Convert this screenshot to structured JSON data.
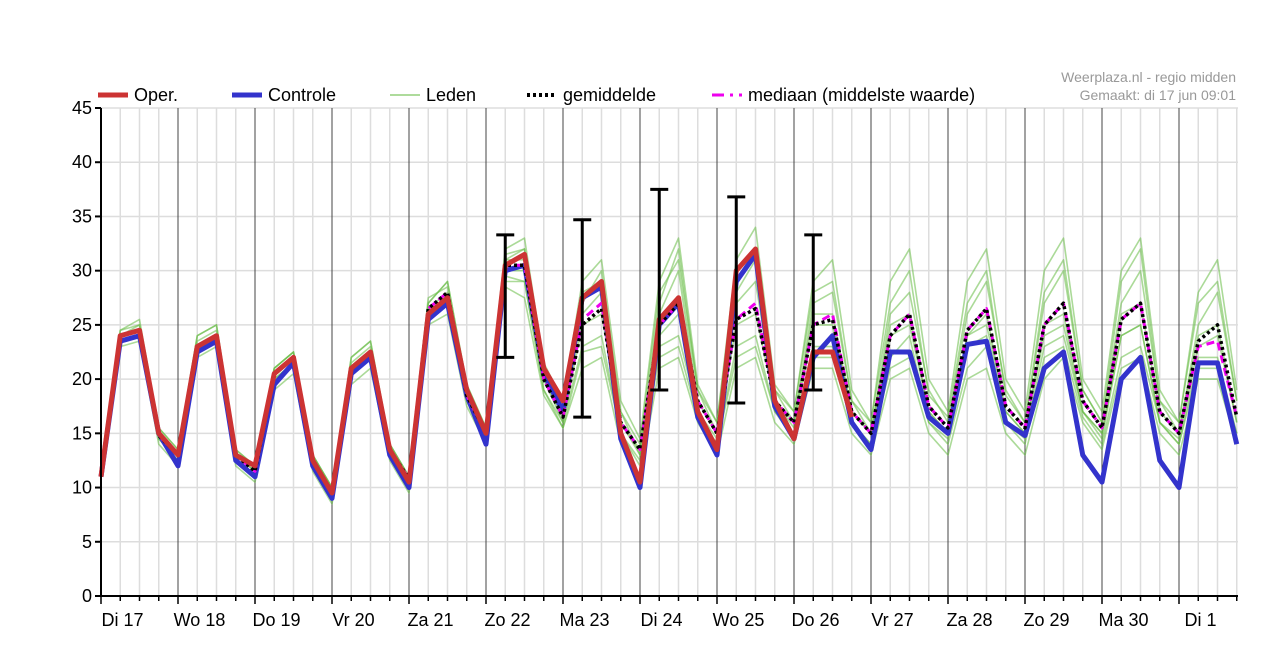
{
  "credit": {
    "line1": "Weerplaza.nl - regio midden",
    "line2": "Gemaakt: di 17 jun 09:01"
  },
  "legend": [
    {
      "key": "oper",
      "label": "Oper.",
      "color": "#cc3333",
      "style": "solid-thick"
    },
    {
      "key": "controle",
      "label": "Controle",
      "color": "#3333cc",
      "style": "solid-thick"
    },
    {
      "key": "leden",
      "label": "Leden",
      "color": "#66bb44",
      "style": "solid-thin"
    },
    {
      "key": "gemiddelde",
      "label": "gemiddelde",
      "color": "#000000",
      "style": "dotted"
    },
    {
      "key": "mediaan",
      "label": "mediaan (middelste waarde)",
      "color": "#ee00ee",
      "style": "dashed"
    }
  ],
  "chart_data": {
    "type": "line",
    "title": "",
    "xlabel": "",
    "ylabel": "",
    "ylim": [
      0,
      45
    ],
    "yticks": [
      0,
      5,
      10,
      15,
      20,
      25,
      30,
      35,
      40,
      45
    ],
    "grid": true,
    "legend_position": "top",
    "x_unit": "6-hour steps from Di 17 00:00",
    "day_labels": [
      "Di 17",
      "Wo 18",
      "Do 19",
      "Vr 20",
      "Za 21",
      "Zo 22",
      "Ma 23",
      "Di 24",
      "Wo 25",
      "Do 26",
      "Vr 27",
      "Za 28",
      "Zo 29",
      "Ma 30",
      "Di 1"
    ],
    "colors": {
      "oper": "#cc3333",
      "controle": "#3333cc",
      "leden": "#66bb44",
      "gemiddelde": "#000000",
      "mediaan": "#ee00ee",
      "spread": "#000000"
    },
    "series": [
      {
        "name": "Oper.",
        "key": "oper",
        "x": [
          0,
          1,
          2,
          3,
          4,
          5,
          6,
          7,
          8,
          9,
          10,
          11,
          12,
          13,
          14,
          15,
          16,
          17,
          18,
          19,
          20,
          21,
          22,
          23,
          24,
          25,
          26,
          27,
          28,
          29,
          30,
          31,
          32,
          33,
          34,
          35,
          36,
          37,
          38,
          39
        ],
        "y": [
          11,
          24,
          24.5,
          15,
          13,
          23,
          24,
          13,
          12,
          20.5,
          22,
          12.5,
          9.5,
          21,
          22.5,
          13.5,
          10.5,
          26,
          27.5,
          19,
          15,
          30.5,
          31.5,
          21,
          18,
          27.5,
          29,
          15,
          10.5,
          25.5,
          27.5,
          17,
          13.5,
          30,
          32,
          18,
          14.5,
          22.5,
          22.5,
          16.5
        ]
      },
      {
        "name": "Controle",
        "key": "controle",
        "x": [
          0,
          1,
          2,
          3,
          4,
          5,
          6,
          7,
          8,
          9,
          10,
          11,
          12,
          13,
          14,
          15,
          16,
          17,
          18,
          19,
          20,
          21,
          22,
          23,
          24,
          25,
          26,
          27,
          28,
          29,
          30,
          31,
          32,
          33,
          34,
          35,
          36,
          37,
          38,
          39,
          40,
          41,
          42,
          43,
          44,
          45,
          46,
          47,
          48,
          49,
          50,
          51,
          52,
          53,
          54,
          55,
          56,
          57,
          58,
          59
        ],
        "y": [
          11,
          23.5,
          24,
          15,
          12,
          22.5,
          23.5,
          12.5,
          11,
          19.5,
          21.5,
          12,
          9,
          20.5,
          22,
          13,
          10,
          25.5,
          27,
          18.5,
          14,
          30,
          30.5,
          20.5,
          17,
          27.5,
          28.5,
          14.5,
          10,
          25,
          27,
          16.5,
          13,
          29,
          31.5,
          17.5,
          14.5,
          22,
          24,
          16,
          13.5,
          22.5,
          22.5,
          16.5,
          15,
          23.2,
          23.5,
          16,
          14.8,
          21,
          22.5,
          13,
          10.5,
          20,
          22,
          12.5,
          10,
          21.5,
          21.5,
          14
        ]
      },
      {
        "name": "gemiddelde",
        "key": "gemiddelde",
        "x": [
          0,
          1,
          2,
          3,
          4,
          5,
          6,
          7,
          8,
          9,
          10,
          11,
          12,
          13,
          14,
          15,
          16,
          17,
          18,
          19,
          20,
          21,
          22,
          23,
          24,
          25,
          26,
          27,
          28,
          29,
          30,
          31,
          32,
          33,
          34,
          35,
          36,
          37,
          38,
          39,
          40,
          41,
          42,
          43,
          44,
          45,
          46,
          47,
          48,
          49,
          50,
          51,
          52,
          53,
          54,
          55,
          56,
          57,
          58,
          59
        ],
        "y": [
          11,
          24,
          24.5,
          14.8,
          13,
          23,
          24,
          13,
          11.5,
          20.5,
          22,
          12.5,
          9.5,
          21,
          22.5,
          13.5,
          10.8,
          26.5,
          28,
          18.5,
          15,
          30.5,
          30.5,
          20,
          16.5,
          25,
          26.5,
          16,
          13.5,
          25,
          27,
          18,
          15,
          25.5,
          26.5,
          18,
          16,
          25,
          25.5,
          17,
          15,
          24,
          26,
          17.5,
          15.5,
          24.5,
          26.5,
          17.5,
          15.5,
          25,
          27,
          18,
          15.5,
          25.5,
          27,
          17,
          15,
          23.5,
          25,
          16.5
        ]
      },
      {
        "name": "mediaan (middelste waarde)",
        "key": "mediaan",
        "x": [
          0,
          1,
          2,
          3,
          4,
          5,
          6,
          7,
          8,
          9,
          10,
          11,
          12,
          13,
          14,
          15,
          16,
          17,
          18,
          19,
          20,
          21,
          22,
          23,
          24,
          25,
          26,
          27,
          28,
          29,
          30,
          31,
          32,
          33,
          34,
          35,
          36,
          37,
          38,
          39,
          40,
          41,
          42,
          43,
          44,
          45,
          46,
          47,
          48,
          49,
          50,
          51,
          52,
          53,
          54,
          55,
          56,
          57,
          58,
          59
        ],
        "y": [
          11,
          24,
          24.5,
          14.8,
          13,
          23,
          24,
          13,
          11.5,
          20.5,
          22,
          12.5,
          9.5,
          21,
          22.5,
          13.5,
          10.8,
          26.5,
          28,
          18.5,
          15,
          30.5,
          30.5,
          20,
          16.5,
          25.5,
          27,
          16,
          13.5,
          25,
          27,
          18,
          15,
          25.5,
          27,
          18,
          16,
          25,
          26,
          17,
          15,
          24,
          26,
          17.5,
          15.5,
          24.5,
          26.5,
          17.5,
          15.5,
          25,
          27,
          18,
          15.5,
          25.5,
          27,
          17,
          15,
          23,
          23.5,
          16.5
        ]
      }
    ],
    "members": [
      {
        "y": [
          11,
          24,
          25,
          15,
          13,
          23.5,
          24.5,
          13,
          11.5,
          21,
          22.5,
          13,
          10,
          21.5,
          23,
          14,
          11,
          27,
          29,
          19.5,
          15.5,
          31,
          32,
          21,
          17,
          27,
          30,
          17,
          13,
          27,
          32,
          19,
          15,
          28,
          31,
          19,
          16,
          27,
          28,
          18,
          15,
          26,
          28,
          19,
          16,
          26,
          29,
          19,
          16,
          27,
          30,
          19,
          16,
          27,
          30,
          18,
          15,
          25,
          28,
          18
        ]
      },
      {
        "y": [
          11,
          23.5,
          24,
          14.5,
          12.5,
          22.5,
          23.5,
          12.5,
          11,
          20,
          21.5,
          12,
          9,
          20.5,
          22,
          13,
          10.5,
          26,
          27,
          18,
          14.5,
          29.5,
          29,
          19,
          16,
          23,
          24,
          15,
          12,
          23,
          24,
          17,
          14,
          23,
          24,
          17,
          15,
          23,
          23,
          16,
          14,
          22,
          24,
          16,
          14.5,
          23,
          24,
          16,
          14.5,
          23,
          24,
          17,
          14.5,
          24,
          25,
          16,
          14,
          22,
          22,
          15
        ]
      },
      {
        "y": [
          11,
          24.5,
          25.5,
          15.5,
          13.5,
          24,
          25,
          13.5,
          12,
          21,
          22.5,
          13,
          10,
          22,
          23.5,
          14,
          11,
          27.5,
          28.5,
          19,
          15.5,
          32,
          33,
          21.5,
          18,
          29,
          31,
          18,
          14.5,
          29,
          33,
          19.5,
          16,
          31,
          34,
          19.5,
          17,
          29,
          31,
          19,
          16,
          29,
          32,
          20,
          17,
          29,
          32,
          20,
          17,
          30,
          33,
          20,
          17,
          30,
          33,
          19,
          16,
          28,
          31,
          19
        ]
      },
      {
        "y": [
          11,
          23,
          23.5,
          14,
          12,
          22,
          23,
          12,
          10.5,
          19,
          20.5,
          11.5,
          8.5,
          19.5,
          21,
          12.5,
          9.5,
          25,
          26,
          17.5,
          14,
          28.5,
          27.5,
          18.5,
          15.5,
          21,
          22,
          14,
          11,
          21,
          22,
          16,
          13,
          21,
          22,
          16,
          14,
          21,
          21,
          15,
          13,
          20,
          21,
          15,
          13,
          20,
          21,
          15,
          13,
          20,
          22,
          16,
          13.5,
          21,
          22,
          15,
          13,
          20,
          20,
          14
        ]
      },
      {
        "y": [
          11,
          24,
          24.5,
          15,
          13,
          23,
          24,
          13,
          11.5,
          20.5,
          22,
          12.5,
          9.5,
          21,
          22.5,
          13.5,
          10.5,
          26.5,
          28,
          18.5,
          15,
          31,
          31,
          20,
          16.5,
          26,
          28,
          16,
          13.5,
          26,
          30,
          18,
          15,
          27,
          29,
          18,
          16,
          26,
          26,
          17,
          15,
          25,
          26,
          17,
          15,
          24,
          26,
          17,
          15,
          25,
          26,
          17,
          15,
          26,
          27,
          17,
          15,
          24,
          25,
          16
        ]
      },
      {
        "y": [
          11,
          24,
          24.5,
          15,
          13,
          23,
          24,
          13,
          11.5,
          20.5,
          22,
          12.5,
          9.5,
          21,
          22.5,
          13.5,
          10.5,
          26,
          27.5,
          18.5,
          14.5,
          30,
          30,
          20,
          16,
          25,
          26,
          16,
          13,
          24,
          26,
          17,
          14.5,
          25,
          26,
          18,
          15.5,
          25,
          25,
          17,
          15,
          24,
          25,
          17,
          15,
          24,
          25,
          17,
          15,
          24,
          25,
          17,
          15,
          24,
          25,
          16,
          14.5,
          23,
          24,
          16
        ]
      },
      {
        "y": [
          11,
          24.5,
          25,
          15.5,
          13.5,
          24,
          25,
          13.5,
          12,
          21,
          22.5,
          13,
          10,
          22,
          23.5,
          14,
          11,
          27,
          29,
          19.5,
          15.5,
          31.5,
          32,
          21,
          17.5,
          28,
          29,
          17,
          14,
          28,
          31,
          19,
          16,
          30,
          32,
          19,
          17,
          28,
          29,
          18,
          16,
          27,
          30,
          18.5,
          16.5,
          27,
          30,
          18.5,
          16,
          28,
          31,
          19,
          16,
          29,
          32,
          18,
          16,
          27,
          29,
          18
        ]
      },
      {
        "y": [
          11,
          23.5,
          24,
          14.5,
          12.5,
          22.5,
          23.5,
          12.5,
          11,
          20,
          21.5,
          12,
          9,
          20.5,
          22,
          13,
          10,
          25.5,
          27,
          18,
          14.5,
          29,
          29,
          19,
          15.5,
          22.5,
          23,
          15,
          12.5,
          22,
          23,
          16.5,
          14,
          22,
          23,
          17,
          14.5,
          22,
          22,
          16,
          14,
          21,
          22,
          16,
          14,
          21,
          23,
          16,
          14,
          22,
          23,
          16.5,
          14,
          22,
          23,
          16,
          14,
          21,
          21,
          15
        ]
      }
    ],
    "error_bars": [
      {
        "x": 21,
        "low": 22,
        "high": 33.3
      },
      {
        "x": 25,
        "low": 16.5,
        "high": 34.7
      },
      {
        "x": 29,
        "low": 19,
        "high": 37.5
      },
      {
        "x": 33,
        "low": 17.8,
        "high": 36.8
      },
      {
        "x": 37,
        "low": 19,
        "high": 33.3
      }
    ]
  }
}
